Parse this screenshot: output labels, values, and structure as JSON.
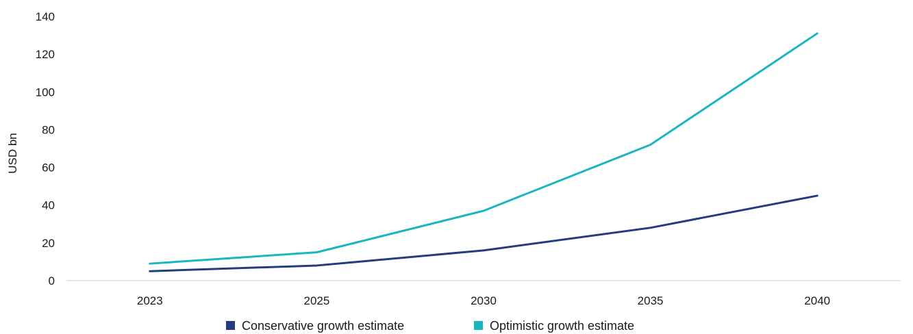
{
  "chart_data": {
    "type": "line",
    "title": "",
    "xlabel": "",
    "ylabel": "USD bn",
    "categories": [
      "2023",
      "2025",
      "2030",
      "2035",
      "2040"
    ],
    "ylim": [
      0,
      140
    ],
    "yticks": [
      "0",
      "20",
      "40",
      "60",
      "80",
      "100",
      "120",
      "140"
    ],
    "grid": false,
    "legend_position": "bottom",
    "series": [
      {
        "name": "Conservative growth estimate",
        "color": "#243b7d",
        "values": [
          5,
          8,
          16,
          28,
          45
        ]
      },
      {
        "name": "Optimistic growth estimate",
        "color": "#19b5c0",
        "values": [
          9,
          15,
          37,
          72,
          131
        ]
      }
    ]
  }
}
